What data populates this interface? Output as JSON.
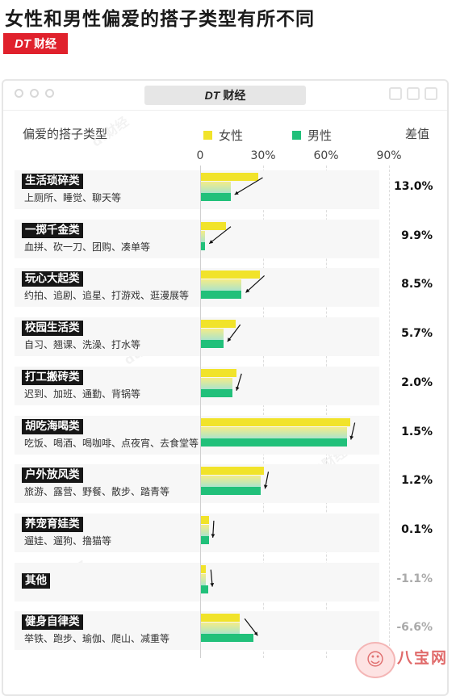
{
  "title": "女性和男性偏爱的搭子类型有所不同",
  "brand": {
    "dt": "DT",
    "name": "财经"
  },
  "window_tab": {
    "dt": "DT",
    "name": "财经"
  },
  "headers": {
    "category": "偏爱的搭子类型",
    "female": "女性",
    "male": "男性",
    "diff": "差值"
  },
  "colors": {
    "female": "#f1e32a",
    "male": "#21c07a",
    "brand_red": "#e0212c"
  },
  "site_logo": {
    "name": "八宝网"
  },
  "chart_data": {
    "type": "bar",
    "orientation": "horizontal",
    "xlim": [
      0,
      90
    ],
    "ticks": [
      "0",
      "30%",
      "60%",
      "90%"
    ],
    "categories": [
      "生活琐碎类",
      "一掷千金类",
      "玩心大起类",
      "校园生活类",
      "打工搬砖类",
      "胡吃海喝类",
      "户外放风类",
      "养宠育娃类",
      "其他",
      "健身自律类"
    ],
    "subtitles": [
      "上厕所、睡觉、聊天等",
      "血拼、砍一刀、团购、凑单等",
      "约拍、追剧、追星、打游戏、逛漫展等",
      "自习、翘课、洗澡、打水等",
      "迟到、加班、通勤、背锅等",
      "吃饭、喝酒、喝咖啡、点夜宵、去食堂等",
      "旅游、露营、野餐、散步、踏青等",
      "遛娃、遛狗、撸猫等",
      "",
      "举铁、跑步、瑜伽、爬山、减重等"
    ],
    "series": [
      {
        "name": "女性",
        "values": [
          27.5,
          12.3,
          28.3,
          16.8,
          17.4,
          71.4,
          30.2,
          4.2,
          2.8,
          18.9
        ]
      },
      {
        "name": "男性",
        "values": [
          14.5,
          2.4,
          19.8,
          11.1,
          15.4,
          69.9,
          29.0,
          4.1,
          3.9,
          25.5
        ]
      }
    ],
    "diff_labels": [
      "13.0%",
      "9.9%",
      "8.5%",
      "5.7%",
      "2.0%",
      "1.5%",
      "1.2%",
      "0.1%",
      "-1.1%",
      "-6.6%"
    ]
  }
}
